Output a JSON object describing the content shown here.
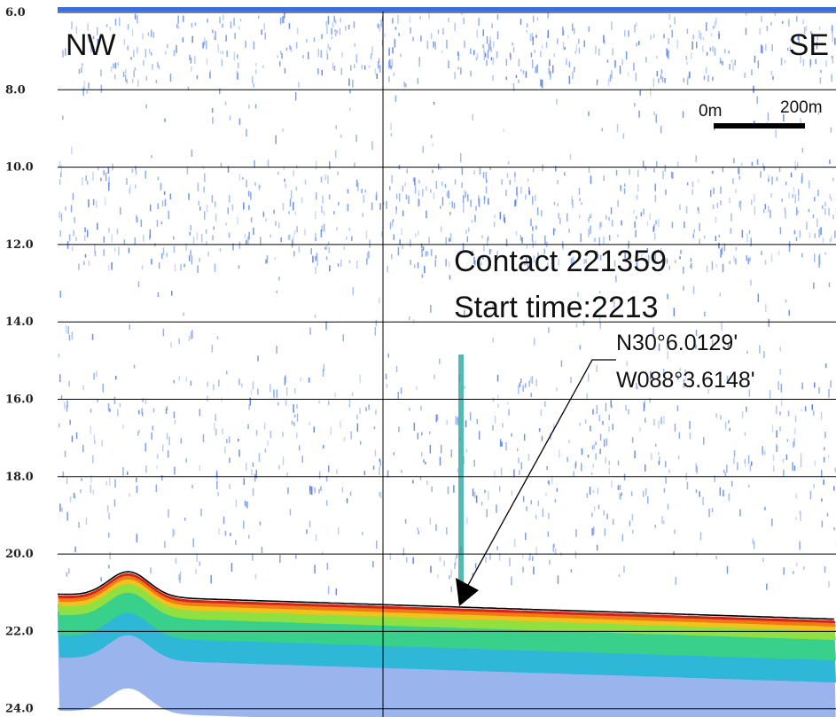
{
  "depth_axis": {
    "labels": [
      "6.0",
      "8.0",
      "10.0",
      "12.0",
      "14.0",
      "16.0",
      "18.0",
      "20.0",
      "22.0",
      "24.0"
    ]
  },
  "direction": {
    "left": "NW",
    "right": "SE"
  },
  "scale_bar": {
    "start": "0m",
    "end": "200m"
  },
  "contact": {
    "name": "Contact 221359",
    "start_time": "Start time:2213",
    "latitude": "N30°6.0129'",
    "longitude": "W088°3.6148'"
  }
}
